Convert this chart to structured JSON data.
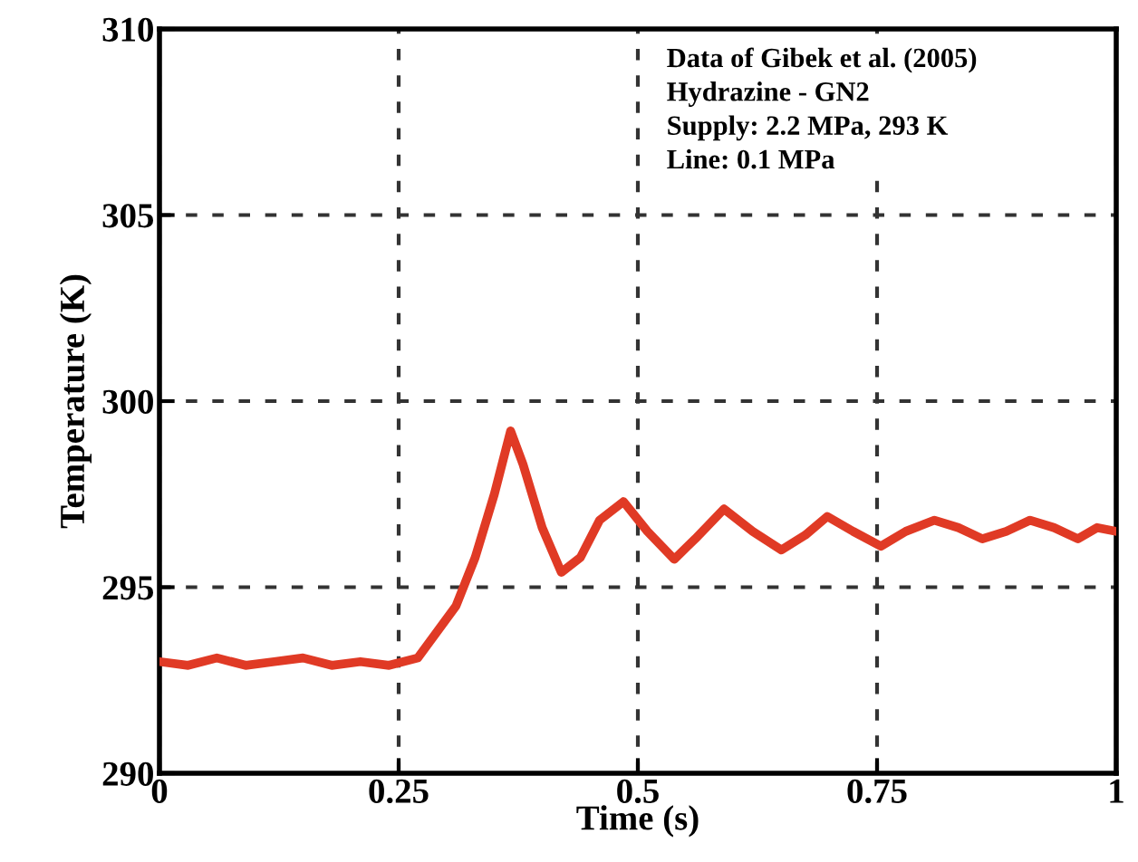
{
  "chart_data": {
    "type": "line",
    "xlabel": "Time (s)",
    "ylabel": "Temperature (K)",
    "annotations": [
      "Data of Gibek et al. (2005)\nHydrazine - GN2\nSupply: 2.2 MPa, 293 K\nLine: 0.1 MPa"
    ],
    "series": [
      {
        "color": "#e03a25",
        "x": [
          0,
          0.03,
          0.06,
          0.09,
          0.12,
          0.15,
          0.18,
          0.21,
          0.24,
          0.27,
          0.29,
          0.31,
          0.33,
          0.35,
          0.367,
          0.38,
          0.4,
          0.42,
          0.44,
          0.46,
          0.485,
          0.51,
          0.538,
          0.56,
          0.59,
          0.62,
          0.65,
          0.675,
          0.698,
          0.725,
          0.754,
          0.78,
          0.81,
          0.835,
          0.86,
          0.885,
          0.91,
          0.935,
          0.96,
          0.98,
          1
        ],
        "values": [
          293,
          292.9,
          293.1,
          292.9,
          293,
          293.1,
          292.9,
          293,
          292.9,
          293.1,
          293.8,
          294.5,
          295.8,
          297.5,
          299.2,
          298.3,
          296.6,
          295.4,
          295.8,
          296.8,
          297.3,
          296.5,
          295.75,
          296.3,
          297.1,
          296.5,
          296,
          296.4,
          296.9,
          296.5,
          296.1,
          296.5,
          296.8,
          296.6,
          296.3,
          296.5,
          296.8,
          296.6,
          296.3,
          296.6,
          296.5
        ]
      }
    ],
    "xlim": [
      0,
      1
    ],
    "ylim": [
      290,
      310
    ],
    "xticks": [
      0,
      0.25,
      0.5,
      0.75,
      1
    ],
    "yticks": [
      290,
      295,
      300,
      305,
      310
    ],
    "grid": true,
    "line_style": "solid",
    "marker": "none"
  }
}
